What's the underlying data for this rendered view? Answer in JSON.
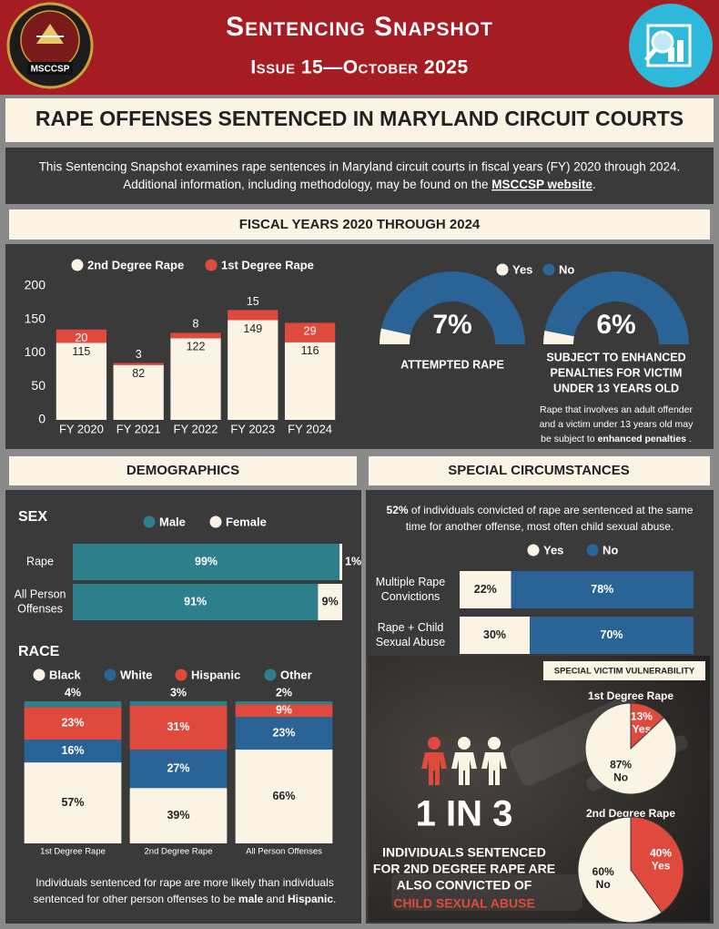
{
  "header": {
    "title": "Sentencing Snapshot",
    "issue": "Issue 15—October 2025",
    "logo": "MSCCSP"
  },
  "banner": "RAPE OFFENSES SENTENCED IN MARYLAND CIRCUIT COURTS",
  "intro": {
    "line1": "This Sentencing Snapshot examines rape sentences in Maryland circuit courts in fiscal years (FY) 2020 through 2024.",
    "line2": "Additional information, including methodology, may be found on the ",
    "link": "MSCCSP website",
    "end": "."
  },
  "fiscal_years": {
    "heading": "FISCAL YEARS 2020 THROUGH 2024",
    "bar_chart": {
      "type": "stacked_bar",
      "categories": [
        "FY 2020",
        "FY 2021",
        "FY 2022",
        "FY 2023",
        "FY 2024"
      ],
      "series": [
        {
          "name": "2nd Degree Rape",
          "color": "#fbf3e4",
          "values": [
            115,
            82,
            122,
            149,
            116
          ]
        },
        {
          "name": "1st Degree Rape",
          "color": "#e04a3c",
          "values": [
            20,
            3,
            8,
            15,
            29
          ]
        }
      ],
      "ylim": [
        0,
        200
      ],
      "yticks": [
        0,
        50,
        100,
        150,
        200
      ]
    },
    "gauges": {
      "type": "gauge",
      "series": [
        {
          "name": "Yes",
          "color": "#fbf3e4"
        },
        {
          "name": "No",
          "color": "#2a6496"
        }
      ],
      "ylim": [
        0,
        100
      ],
      "values": [
        7,
        6
      ],
      "value_labels": [
        "7%",
        "6%"
      ],
      "labels": [
        [
          "ATTEMPTED RAPE"
        ],
        [
          "SUBJECT TO ENHANCED",
          "PENALTIES FOR VICTIM",
          "UNDER 13 YEARS OLD"
        ]
      ],
      "note": {
        "line1": "Rape that involves an adult offender",
        "line2": "and a victim under 13 years old may",
        "line3": "be subject to ",
        "bold": "enhanced penalties",
        "end": " ."
      }
    }
  },
  "demographics": {
    "heading": "DEMOGRAPHICS",
    "sex": {
      "type": "hbar_stacked",
      "title": "SEX",
      "categories": [
        [
          "Rape"
        ],
        [
          "All Person",
          "Offenses"
        ]
      ],
      "series": [
        {
          "name": "Male",
          "color": "#2e7f8c",
          "values": [
            99,
            91
          ],
          "value_labels": [
            "99%",
            "91%"
          ]
        },
        {
          "name": "Female",
          "color": "#fbf3e4",
          "values": [
            1,
            9
          ],
          "value_labels": [
            "1%",
            "9%"
          ]
        }
      ],
      "xlim": [
        0,
        100
      ]
    },
    "race": {
      "type": "stacked_bar",
      "title": "RACE",
      "categories": [
        "1st Degree Rape",
        "2nd Degree Rape",
        "All Person Offenses"
      ],
      "series": [
        {
          "name": "Black",
          "color": "#fbf3e4",
          "values": [
            57,
            39,
            66
          ],
          "value_labels": [
            "57%",
            "39%",
            "66%"
          ]
        },
        {
          "name": "White",
          "color": "#2a6496",
          "values": [
            16,
            27,
            23
          ],
          "value_labels": [
            "16%",
            "27%",
            "23%"
          ]
        },
        {
          "name": "Hispanic",
          "color": "#e04a3c",
          "values": [
            23,
            31,
            9
          ],
          "value_labels": [
            "23%",
            "31%",
            "9%"
          ]
        },
        {
          "name": "Other",
          "color": "#2e7f8c",
          "values": [
            4,
            3,
            2
          ],
          "value_labels": [
            "4%",
            "3%",
            "2%"
          ]
        }
      ],
      "ylim": [
        0,
        100
      ]
    },
    "note": {
      "line1": "Individuals sentenced for rape are more likely than individuals",
      "line2": "sentenced for other person offenses to be ",
      "bold1": "male",
      "and": " and ",
      "bold2": "Hispanic",
      "end": "."
    }
  },
  "special_circumstances": {
    "heading": "SPECIAL CIRCUMSTANCES",
    "text": {
      "bold": "52%",
      "line1": " of individuals convicted of rape are sentenced at the same",
      "line2": "time for another offense, most often child sexual abuse."
    },
    "chart": {
      "type": "hbar_stacked",
      "categories": [
        [
          "Multiple Rape",
          "Convictions"
        ],
        [
          "Rape + Child",
          "Sexual Abuse"
        ]
      ],
      "series": [
        {
          "name": "Yes",
          "color": "#fbf3e4",
          "values": [
            22,
            30
          ],
          "value_labels": [
            "22%",
            "30%"
          ]
        },
        {
          "name": "No",
          "color": "#2a6496",
          "values": [
            78,
            70
          ],
          "value_labels": [
            "78%",
            "70%"
          ]
        }
      ],
      "xlim": [
        0,
        100
      ]
    },
    "victim_vulnerability": {
      "heading": "SPECIAL VICTIM VULNERABILITY",
      "pies": [
        {
          "type": "pie",
          "title": "1st Degree Rape",
          "categories": [
            "Yes",
            "No"
          ],
          "values": [
            13,
            87
          ],
          "value_labels": [
            "13%",
            "87%"
          ],
          "colors": [
            "#e04a3c",
            "#fbf3e4"
          ]
        },
        {
          "type": "pie",
          "title": "2nd Degree Rape",
          "categories": [
            "Yes",
            "No"
          ],
          "values": [
            40,
            60
          ],
          "value_labels": [
            "40%",
            "60%"
          ],
          "colors": [
            "#e04a3c",
            "#fbf3e4"
          ]
        }
      ]
    },
    "one_in_three": {
      "stat": "1 IN 3",
      "lines": [
        "INDIVIDUALS SENTENCED",
        "FOR 2ND DEGREE RAPE ARE",
        "ALSO CONVICTED OF"
      ],
      "highlight": "CHILD SEXUAL ABUSE"
    }
  }
}
